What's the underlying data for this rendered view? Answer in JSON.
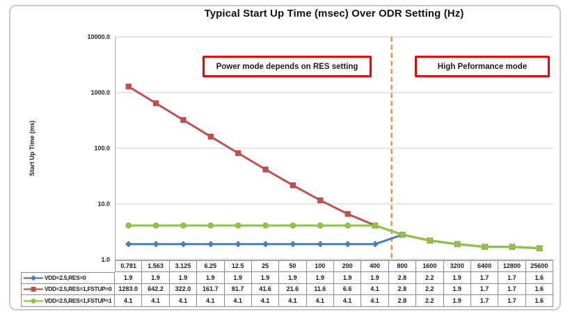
{
  "chart_data": {
    "type": "line",
    "title": "Typical Start Up Time (msec) Over ODR Setting (Hz)",
    "xlabel": "",
    "ylabel": "Start Up Time (ms)",
    "y_scale": "log",
    "ylim": [
      1.0,
      10000.0
    ],
    "y_tick_labels": [
      "10000.0",
      "1000.0",
      "100.0",
      "10.0",
      "1.0"
    ],
    "grid": true,
    "legend_position": "data-table-left",
    "categories": [
      "0.781",
      "1.563",
      "3.125",
      "6.25",
      "12.5",
      "25",
      "50",
      "100",
      "200",
      "400",
      "800",
      "1600",
      "3200",
      "6400",
      "12800",
      "25600"
    ],
    "series": [
      {
        "name": "VDD=2.5,RES=0",
        "color": "#4A7EBB",
        "marker": "diamond",
        "values": [
          1.9,
          1.9,
          1.9,
          1.9,
          1.9,
          1.9,
          1.9,
          1.9,
          1.9,
          1.9,
          2.8,
          2.2,
          1.9,
          1.7,
          1.7,
          1.6
        ]
      },
      {
        "name": "VDD=2.5,RES=1,FSTUP=0",
        "color": "#C0504D",
        "marker": "square",
        "values": [
          1283.0,
          642.2,
          322.0,
          161.7,
          81.7,
          41.6,
          21.6,
          11.6,
          6.6,
          4.1,
          2.8,
          2.2,
          1.9,
          1.7,
          1.7,
          1.6
        ]
      },
      {
        "name": "VDD=2.5,RES=1,FSTUP=1",
        "color": "#8CC63F",
        "marker": "circle",
        "values": [
          4.1,
          4.1,
          4.1,
          4.1,
          4.1,
          4.1,
          4.1,
          4.1,
          4.1,
          4.1,
          2.8,
          2.2,
          1.9,
          1.7,
          1.7,
          1.6
        ]
      }
    ],
    "divider_line": {
      "between_categories": [
        "400",
        "800"
      ],
      "color": "#F08C3C",
      "style": "dashed"
    },
    "annotations": [
      {
        "text": "Power mode depends on RES setting",
        "region": "left-of-divider"
      },
      {
        "text": "High Peformance mode",
        "region": "right-of-divider"
      }
    ]
  }
}
